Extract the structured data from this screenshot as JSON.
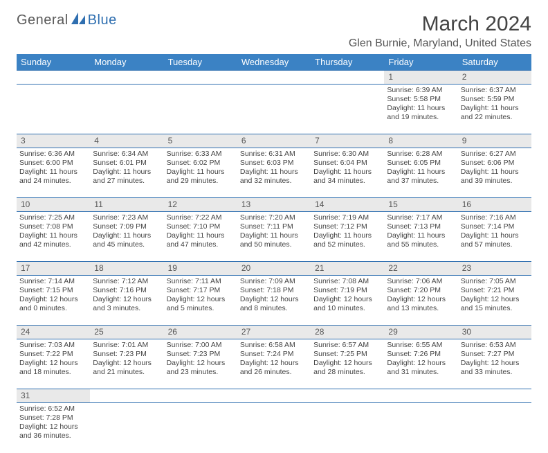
{
  "brand": {
    "part1": "General",
    "part2": "Blue"
  },
  "title": "March 2024",
  "location": "Glen Burnie, Maryland, United States",
  "colors": {
    "header_bg": "#3b82c4",
    "header_text": "#ffffff",
    "daynum_bg": "#e9e9e9",
    "rule": "#2f6fb0",
    "text": "#444444",
    "logo_gray": "#5a5a5a",
    "logo_blue": "#2f6fb0"
  },
  "day_headers": [
    "Sunday",
    "Monday",
    "Tuesday",
    "Wednesday",
    "Thursday",
    "Friday",
    "Saturday"
  ],
  "weeks": [
    [
      {
        "n": "",
        "lines": [
          "",
          "",
          "",
          ""
        ]
      },
      {
        "n": "",
        "lines": [
          "",
          "",
          "",
          ""
        ]
      },
      {
        "n": "",
        "lines": [
          "",
          "",
          "",
          ""
        ]
      },
      {
        "n": "",
        "lines": [
          "",
          "",
          "",
          ""
        ]
      },
      {
        "n": "",
        "lines": [
          "",
          "",
          "",
          ""
        ]
      },
      {
        "n": "1",
        "lines": [
          "Sunrise: 6:39 AM",
          "Sunset: 5:58 PM",
          "Daylight: 11 hours",
          "and 19 minutes."
        ]
      },
      {
        "n": "2",
        "lines": [
          "Sunrise: 6:37 AM",
          "Sunset: 5:59 PM",
          "Daylight: 11 hours",
          "and 22 minutes."
        ]
      }
    ],
    [
      {
        "n": "3",
        "lines": [
          "Sunrise: 6:36 AM",
          "Sunset: 6:00 PM",
          "Daylight: 11 hours",
          "and 24 minutes."
        ]
      },
      {
        "n": "4",
        "lines": [
          "Sunrise: 6:34 AM",
          "Sunset: 6:01 PM",
          "Daylight: 11 hours",
          "and 27 minutes."
        ]
      },
      {
        "n": "5",
        "lines": [
          "Sunrise: 6:33 AM",
          "Sunset: 6:02 PM",
          "Daylight: 11 hours",
          "and 29 minutes."
        ]
      },
      {
        "n": "6",
        "lines": [
          "Sunrise: 6:31 AM",
          "Sunset: 6:03 PM",
          "Daylight: 11 hours",
          "and 32 minutes."
        ]
      },
      {
        "n": "7",
        "lines": [
          "Sunrise: 6:30 AM",
          "Sunset: 6:04 PM",
          "Daylight: 11 hours",
          "and 34 minutes."
        ]
      },
      {
        "n": "8",
        "lines": [
          "Sunrise: 6:28 AM",
          "Sunset: 6:05 PM",
          "Daylight: 11 hours",
          "and 37 minutes."
        ]
      },
      {
        "n": "9",
        "lines": [
          "Sunrise: 6:27 AM",
          "Sunset: 6:06 PM",
          "Daylight: 11 hours",
          "and 39 minutes."
        ]
      }
    ],
    [
      {
        "n": "10",
        "lines": [
          "Sunrise: 7:25 AM",
          "Sunset: 7:08 PM",
          "Daylight: 11 hours",
          "and 42 minutes."
        ]
      },
      {
        "n": "11",
        "lines": [
          "Sunrise: 7:23 AM",
          "Sunset: 7:09 PM",
          "Daylight: 11 hours",
          "and 45 minutes."
        ]
      },
      {
        "n": "12",
        "lines": [
          "Sunrise: 7:22 AM",
          "Sunset: 7:10 PM",
          "Daylight: 11 hours",
          "and 47 minutes."
        ]
      },
      {
        "n": "13",
        "lines": [
          "Sunrise: 7:20 AM",
          "Sunset: 7:11 PM",
          "Daylight: 11 hours",
          "and 50 minutes."
        ]
      },
      {
        "n": "14",
        "lines": [
          "Sunrise: 7:19 AM",
          "Sunset: 7:12 PM",
          "Daylight: 11 hours",
          "and 52 minutes."
        ]
      },
      {
        "n": "15",
        "lines": [
          "Sunrise: 7:17 AM",
          "Sunset: 7:13 PM",
          "Daylight: 11 hours",
          "and 55 minutes."
        ]
      },
      {
        "n": "16",
        "lines": [
          "Sunrise: 7:16 AM",
          "Sunset: 7:14 PM",
          "Daylight: 11 hours",
          "and 57 minutes."
        ]
      }
    ],
    [
      {
        "n": "17",
        "lines": [
          "Sunrise: 7:14 AM",
          "Sunset: 7:15 PM",
          "Daylight: 12 hours",
          "and 0 minutes."
        ]
      },
      {
        "n": "18",
        "lines": [
          "Sunrise: 7:12 AM",
          "Sunset: 7:16 PM",
          "Daylight: 12 hours",
          "and 3 minutes."
        ]
      },
      {
        "n": "19",
        "lines": [
          "Sunrise: 7:11 AM",
          "Sunset: 7:17 PM",
          "Daylight: 12 hours",
          "and 5 minutes."
        ]
      },
      {
        "n": "20",
        "lines": [
          "Sunrise: 7:09 AM",
          "Sunset: 7:18 PM",
          "Daylight: 12 hours",
          "and 8 minutes."
        ]
      },
      {
        "n": "21",
        "lines": [
          "Sunrise: 7:08 AM",
          "Sunset: 7:19 PM",
          "Daylight: 12 hours",
          "and 10 minutes."
        ]
      },
      {
        "n": "22",
        "lines": [
          "Sunrise: 7:06 AM",
          "Sunset: 7:20 PM",
          "Daylight: 12 hours",
          "and 13 minutes."
        ]
      },
      {
        "n": "23",
        "lines": [
          "Sunrise: 7:05 AM",
          "Sunset: 7:21 PM",
          "Daylight: 12 hours",
          "and 15 minutes."
        ]
      }
    ],
    [
      {
        "n": "24",
        "lines": [
          "Sunrise: 7:03 AM",
          "Sunset: 7:22 PM",
          "Daylight: 12 hours",
          "and 18 minutes."
        ]
      },
      {
        "n": "25",
        "lines": [
          "Sunrise: 7:01 AM",
          "Sunset: 7:23 PM",
          "Daylight: 12 hours",
          "and 21 minutes."
        ]
      },
      {
        "n": "26",
        "lines": [
          "Sunrise: 7:00 AM",
          "Sunset: 7:23 PM",
          "Daylight: 12 hours",
          "and 23 minutes."
        ]
      },
      {
        "n": "27",
        "lines": [
          "Sunrise: 6:58 AM",
          "Sunset: 7:24 PM",
          "Daylight: 12 hours",
          "and 26 minutes."
        ]
      },
      {
        "n": "28",
        "lines": [
          "Sunrise: 6:57 AM",
          "Sunset: 7:25 PM",
          "Daylight: 12 hours",
          "and 28 minutes."
        ]
      },
      {
        "n": "29",
        "lines": [
          "Sunrise: 6:55 AM",
          "Sunset: 7:26 PM",
          "Daylight: 12 hours",
          "and 31 minutes."
        ]
      },
      {
        "n": "30",
        "lines": [
          "Sunrise: 6:53 AM",
          "Sunset: 7:27 PM",
          "Daylight: 12 hours",
          "and 33 minutes."
        ]
      }
    ],
    [
      {
        "n": "31",
        "lines": [
          "Sunrise: 6:52 AM",
          "Sunset: 7:28 PM",
          "Daylight: 12 hours",
          "and 36 minutes."
        ]
      },
      {
        "n": "",
        "lines": [
          "",
          "",
          "",
          ""
        ]
      },
      {
        "n": "",
        "lines": [
          "",
          "",
          "",
          ""
        ]
      },
      {
        "n": "",
        "lines": [
          "",
          "",
          "",
          ""
        ]
      },
      {
        "n": "",
        "lines": [
          "",
          "",
          "",
          ""
        ]
      },
      {
        "n": "",
        "lines": [
          "",
          "",
          "",
          ""
        ]
      },
      {
        "n": "",
        "lines": [
          "",
          "",
          "",
          ""
        ]
      }
    ]
  ]
}
